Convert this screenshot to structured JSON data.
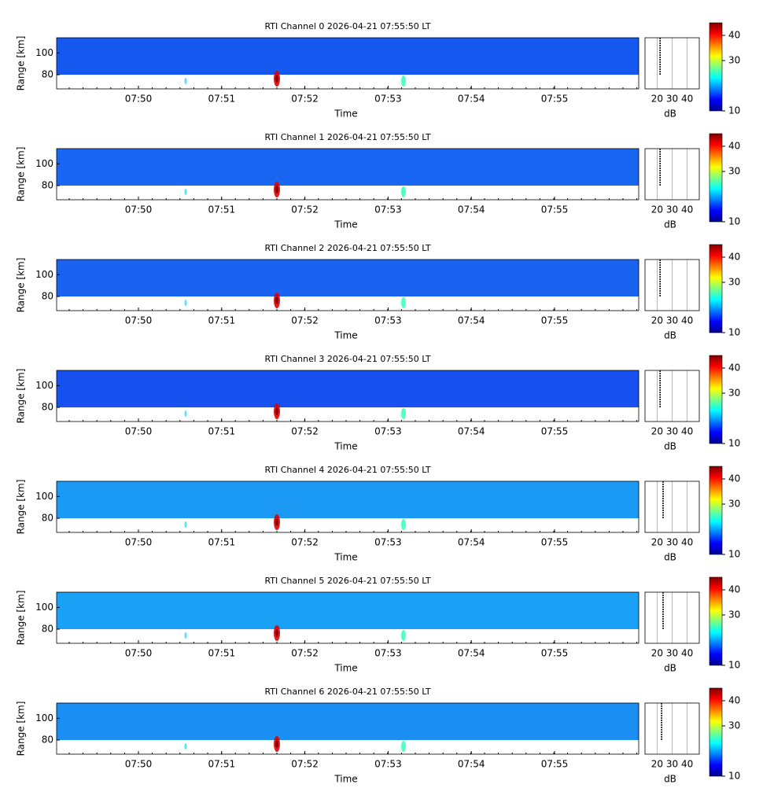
{
  "chart_data": [
    {
      "type": "heatmap",
      "title": "RTI Channel 0 2026-04-21 07:55:50 LT",
      "xlabel": "Time",
      "ylabel": "Range [km]",
      "xticks": [
        "07:50",
        "07:51",
        "07:52",
        "07:53",
        "07:54",
        "07:55"
      ],
      "ylim": [
        67,
        114
      ],
      "yticks": [
        80,
        100
      ],
      "data_range": [
        80,
        114
      ],
      "color": "#1558ef",
      "profile": {
        "xlabel": "dB",
        "xlim": [
          12,
          48
        ],
        "xticks": [
          20,
          30,
          40
        ],
        "value": 22
      },
      "colorbar": {
        "clim": [
          10,
          45
        ],
        "ticks": [
          10,
          30,
          40
        ]
      }
    },
    {
      "type": "heatmap",
      "title": "RTI Channel 1 2026-04-21 07:55:50 LT",
      "xlabel": "Time",
      "ylabel": "Range [km]",
      "xticks": [
        "07:50",
        "07:51",
        "07:52",
        "07:53",
        "07:54",
        "07:55"
      ],
      "ylim": [
        67,
        114
      ],
      "yticks": [
        80,
        100
      ],
      "data_range": [
        80,
        114
      ],
      "color": "#1866f2",
      "profile": {
        "xlabel": "dB",
        "xlim": [
          12,
          48
        ],
        "xticks": [
          20,
          30,
          40
        ],
        "value": 22
      },
      "colorbar": {
        "clim": [
          10,
          45
        ],
        "ticks": [
          10,
          30,
          40
        ]
      }
    },
    {
      "type": "heatmap",
      "title": "RTI Channel 2 2026-04-21 07:55:50 LT",
      "xlabel": "Time",
      "ylabel": "Range [km]",
      "xticks": [
        "07:50",
        "07:51",
        "07:52",
        "07:53",
        "07:54",
        "07:55"
      ],
      "ylim": [
        67,
        114
      ],
      "yticks": [
        80,
        100
      ],
      "data_range": [
        80,
        114
      ],
      "color": "#1a62f0",
      "profile": {
        "xlabel": "dB",
        "xlim": [
          12,
          48
        ],
        "xticks": [
          20,
          30,
          40
        ],
        "value": 22
      },
      "colorbar": {
        "clim": [
          10,
          45
        ],
        "ticks": [
          10,
          30,
          40
        ]
      }
    },
    {
      "type": "heatmap",
      "title": "RTI Channel 3 2026-04-21 07:55:50 LT",
      "xlabel": "Time",
      "ylabel": "Range [km]",
      "xticks": [
        "07:50",
        "07:51",
        "07:52",
        "07:53",
        "07:54",
        "07:55"
      ],
      "ylim": [
        67,
        114
      ],
      "yticks": [
        80,
        100
      ],
      "data_range": [
        80,
        114
      ],
      "color": "#1650ee",
      "profile": {
        "xlabel": "dB",
        "xlim": [
          12,
          48
        ],
        "xticks": [
          20,
          30,
          40
        ],
        "value": 22
      },
      "colorbar": {
        "clim": [
          10,
          45
        ],
        "ticks": [
          10,
          30,
          40
        ]
      }
    },
    {
      "type": "heatmap",
      "title": "RTI Channel 4 2026-04-21 07:55:50 LT",
      "xlabel": "Time",
      "ylabel": "Range [km]",
      "xticks": [
        "07:50",
        "07:51",
        "07:52",
        "07:53",
        "07:54",
        "07:55"
      ],
      "ylim": [
        67,
        114
      ],
      "yticks": [
        80,
        100
      ],
      "data_range": [
        80,
        114
      ],
      "color": "#1a9af5",
      "profile": {
        "xlabel": "dB",
        "xlim": [
          12,
          48
        ],
        "xticks": [
          20,
          30,
          40
        ],
        "value": 24
      },
      "colorbar": {
        "clim": [
          10,
          45
        ],
        "ticks": [
          10,
          30,
          40
        ]
      }
    },
    {
      "type": "heatmap",
      "title": "RTI Channel 5 2026-04-21 07:55:50 LT",
      "xlabel": "Time",
      "ylabel": "Range [km]",
      "xticks": [
        "07:50",
        "07:51",
        "07:52",
        "07:53",
        "07:54",
        "07:55"
      ],
      "ylim": [
        67,
        114
      ],
      "yticks": [
        80,
        100
      ],
      "data_range": [
        80,
        114
      ],
      "color": "#1aa0f5",
      "profile": {
        "xlabel": "dB",
        "xlim": [
          12,
          48
        ],
        "xticks": [
          20,
          30,
          40
        ],
        "value": 24
      },
      "colorbar": {
        "clim": [
          10,
          45
        ],
        "ticks": [
          10,
          30,
          40
        ]
      }
    },
    {
      "type": "heatmap",
      "title": "RTI Channel 6 2026-04-21 07:55:50 LT",
      "xlabel": "Time",
      "ylabel": "Range [km]",
      "xticks": [
        "07:50",
        "07:51",
        "07:52",
        "07:53",
        "07:54",
        "07:55"
      ],
      "ylim": [
        67,
        114
      ],
      "yticks": [
        80,
        100
      ],
      "data_range": [
        80,
        114
      ],
      "color": "#1a8ef3",
      "profile": {
        "xlabel": "dB",
        "xlim": [
          12,
          48
        ],
        "xticks": [
          20,
          30,
          40
        ],
        "value": 23
      },
      "colorbar": {
        "clim": [
          10,
          45
        ],
        "ticks": [
          10,
          30,
          40
        ]
      }
    }
  ]
}
